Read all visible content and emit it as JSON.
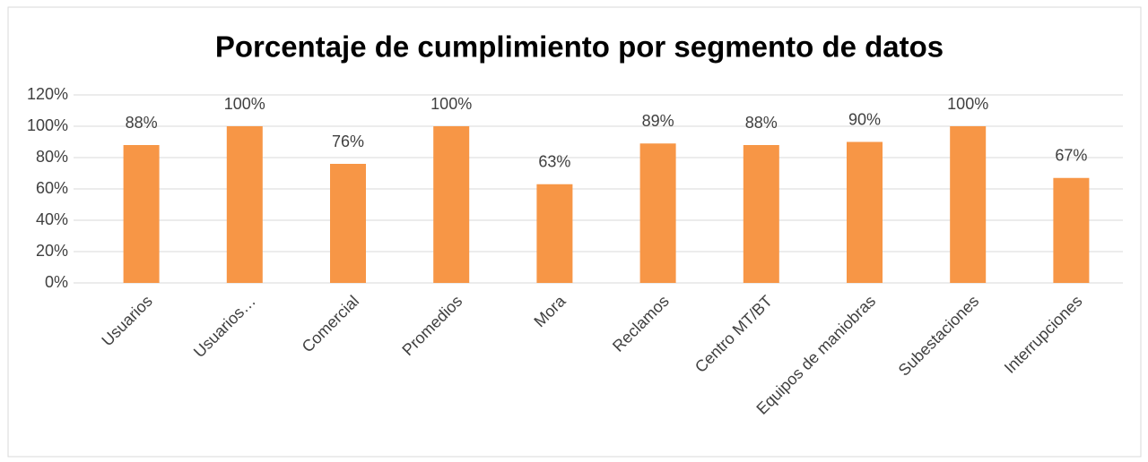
{
  "chart_data": {
    "type": "bar",
    "title": "Porcentaje de cumplimiento por segmento de datos",
    "categories": [
      "Usuarios",
      "Usuarios…",
      "Comercial",
      "Promedios",
      "Mora",
      "Reclamos",
      "Centro MT/BT",
      "Equipos de maniobras",
      "Subestaciones",
      "Interrupciones"
    ],
    "values": [
      88,
      100,
      76,
      100,
      63,
      89,
      88,
      90,
      100,
      67
    ],
    "value_labels": [
      "88%",
      "100%",
      "76%",
      "100%",
      "63%",
      "89%",
      "88%",
      "90%",
      "100%",
      "67%"
    ],
    "color": "#f79646",
    "ylim": [
      0,
      120
    ],
    "yticks": [
      {
        "value": 0,
        "label": "0%"
      },
      {
        "value": 20,
        "label": "20%"
      },
      {
        "value": 40,
        "label": "40%"
      },
      {
        "value": 60,
        "label": "60%"
      },
      {
        "value": 80,
        "label": "80%"
      },
      {
        "value": 100,
        "label": "100%"
      },
      {
        "value": 120,
        "label": "120%"
      }
    ],
    "grid": true
  }
}
